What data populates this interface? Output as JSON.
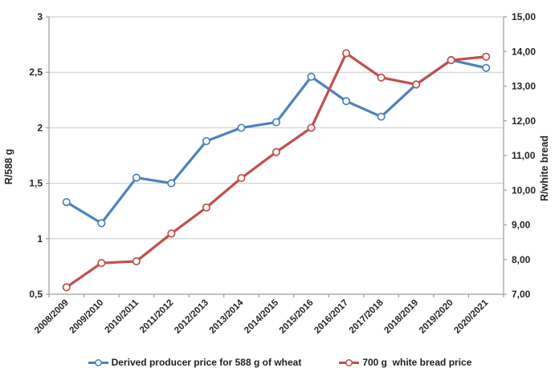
{
  "chart_data": {
    "type": "line",
    "categories": [
      "2008/2009",
      "2009/2010",
      "2010/2011",
      "2011/2012",
      "2012/2013",
      "2013/2014",
      "2014/2015",
      "2015/2016",
      "2016/2017",
      "2017/2018",
      "2018/2019",
      "2019/2020",
      "2020/2021"
    ],
    "series": [
      {
        "name": "Derived producer price for 588 g of wheat",
        "axis": "left",
        "color": "#4F81BD",
        "marker": "open-circle",
        "values": [
          1.33,
          1.14,
          1.55,
          1.5,
          1.88,
          2.0,
          2.05,
          2.46,
          2.24,
          2.1,
          2.39,
          2.61,
          2.54
        ]
      },
      {
        "name": "700 g  white bread price",
        "axis": "right",
        "color": "#C0504D",
        "marker": "open-circle",
        "values": [
          7.2,
          7.9,
          7.95,
          8.75,
          9.5,
          10.35,
          11.1,
          11.8,
          13.95,
          13.25,
          13.05,
          13.75,
          13.85
        ]
      }
    ],
    "left_axis": {
      "title": "R/588 g",
      "min": 0.5,
      "max": 3,
      "step": 0.5,
      "tick_labels": [
        "0,5",
        "1",
        "1,5",
        "2",
        "2,5",
        "3"
      ]
    },
    "right_axis": {
      "title": "R/white bread",
      "min": 7,
      "max": 15,
      "step": 1,
      "tick_labels": [
        "7,00",
        "8,00",
        "9,00",
        "10,00",
        "11,00",
        "12,00",
        "13,00",
        "14,00",
        "15,00"
      ]
    },
    "grid": "horizontal-only",
    "legend_position": "bottom",
    "colors": {
      "gridline": "#C9C9C9",
      "axis_line": "#9D9D9D",
      "text": "#262626",
      "background": "#FFFFFF"
    }
  }
}
